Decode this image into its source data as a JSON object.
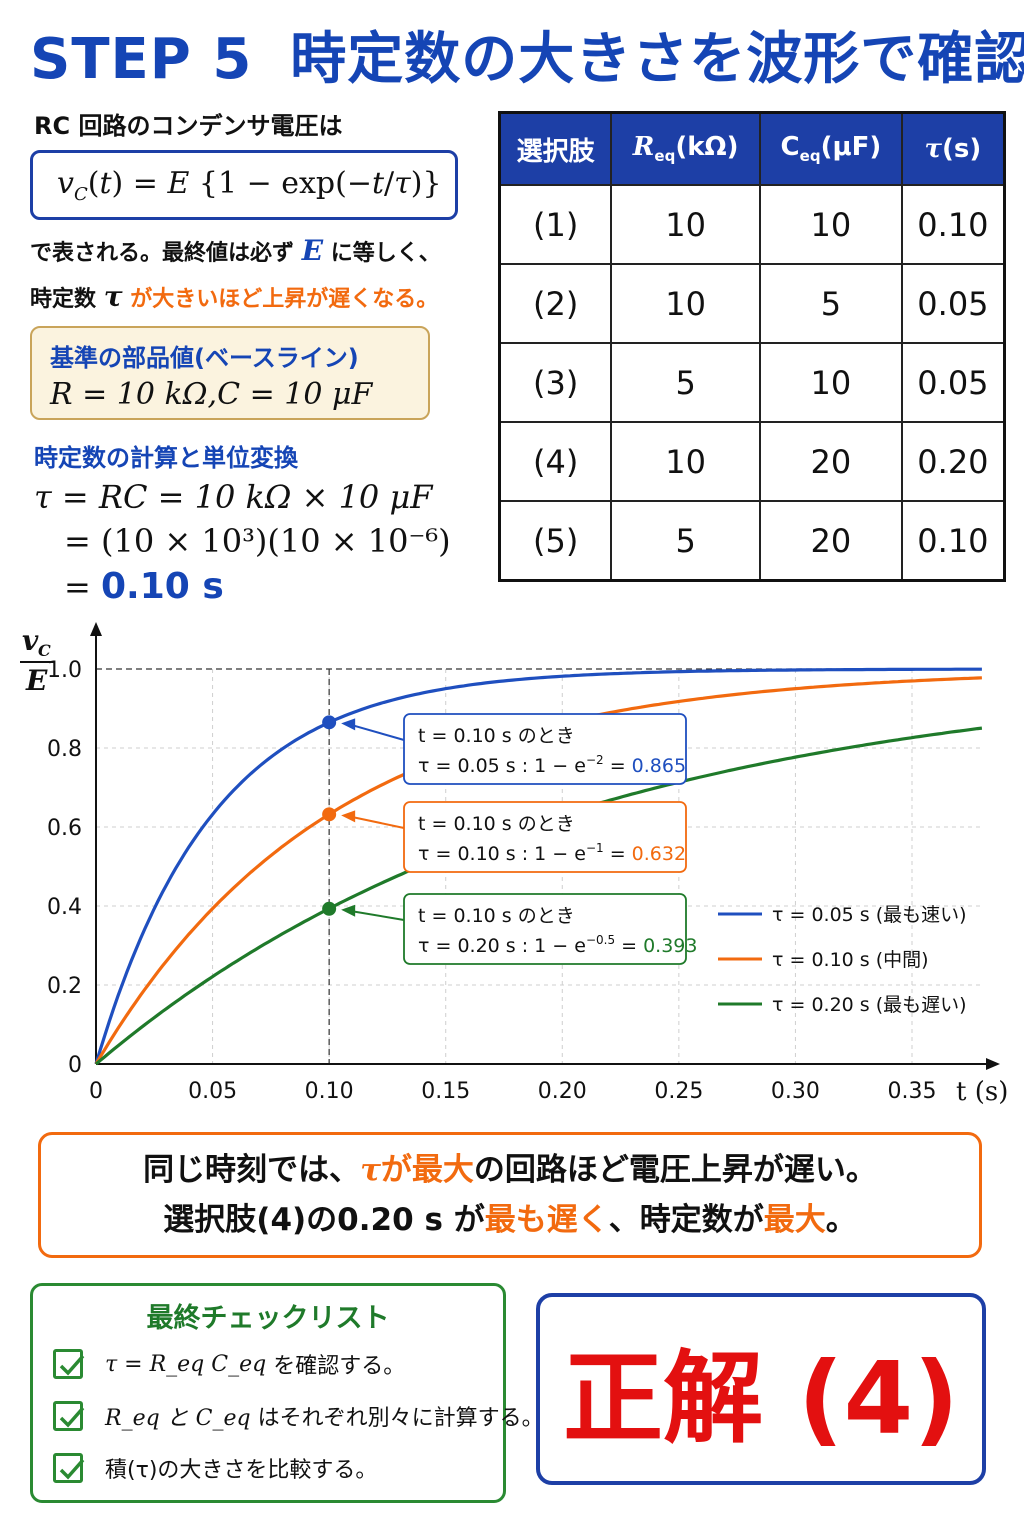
{
  "title": {
    "step": "STEP 5",
    "text": "時定数の大きさを波形で確認"
  },
  "intro": {
    "lead": "RC 回路のコンデンサ電圧は",
    "formula": "v_C(t) = E{1 − exp(−t/τ)}",
    "line1_a": "で表される。最終値は必ず",
    "line1_var": "E",
    "line1_b": "に等しく、",
    "line2_a": "時定数",
    "line2_var": "τ",
    "line2_b": "が大きいほど上昇が遅くなる。"
  },
  "baseline": {
    "title": "基準の部品値(ベースライン)",
    "values": "R = 10 kΩ,C = 10 μF"
  },
  "calculation": {
    "title": "時定数の計算と単位変換",
    "line1": "τ = RC = 10 kΩ × 10 μF",
    "line2": "= (10 × 10³)(10 × 10⁻⁶)",
    "line3_eq": "=",
    "result": "0.10 s"
  },
  "table": {
    "headers": [
      "選択肢",
      "R_eq(kΩ)",
      "C_eq(μF)",
      "τ(s)"
    ],
    "rows": [
      [
        "(1)",
        "10",
        "10",
        "0.10"
      ],
      [
        "(2)",
        "10",
        "5",
        "0.05"
      ],
      [
        "(3)",
        "5",
        "10",
        "0.05"
      ],
      [
        "(4)",
        "10",
        "20",
        "0.20"
      ],
      [
        "(5)",
        "5",
        "20",
        "0.10"
      ]
    ]
  },
  "chart_data": {
    "type": "line",
    "ylabel": "v_C / E",
    "xlabel": "t (s)",
    "xlim": [
      0,
      0.38
    ],
    "ylim": [
      0,
      1.0
    ],
    "x_ticks": [
      "0",
      "0.05",
      "0.10",
      "0.15",
      "0.20",
      "0.25",
      "0.30",
      "0.35"
    ],
    "y_ticks": [
      "0",
      "0.2",
      "0.4",
      "0.6",
      "0.8",
      "1.0"
    ],
    "grid": true,
    "legend_position": "bottom-right",
    "series": [
      {
        "name": "τ = 0.05 s (最も速い)",
        "tau": 0.05,
        "color": "#1f4fbf"
      },
      {
        "name": "τ = 0.10 s (中間)",
        "tau": 0.1,
        "color": "#f26a0f"
      },
      {
        "name": "τ = 0.20 s (最も遅い)",
        "tau": 0.2,
        "color": "#1f7a2a"
      }
    ],
    "marker_t": 0.1,
    "annotations": [
      {
        "line1": "t = 0.10 s のとき",
        "line2": "τ = 0.05 s : 1 − e",
        "exp": "−2",
        "eq": " = ",
        "value": "0.865",
        "y": 0.865,
        "color": "#1f4fbf"
      },
      {
        "line1": "t = 0.10 s のとき",
        "line2": "τ = 0.10 s : 1 − e",
        "exp": "−1",
        "eq": " = ",
        "value": "0.632",
        "y": 0.632,
        "color": "#f26a0f"
      },
      {
        "line1": "t = 0.10 s のとき",
        "line2": "τ = 0.20 s : 1 − e",
        "exp": "−0.5",
        "eq": " = ",
        "value": "0.393",
        "y": 0.393,
        "color": "#1f7a2a"
      }
    ]
  },
  "conclusion": {
    "l1_a": "同じ時刻では、",
    "l1_tau": "τ",
    "l1_b": "が最大",
    "l1_c": "の回路ほど電圧上昇が遅い。",
    "l2_a": "選択肢(4)の0.20 s が",
    "l2_b": "最も遅く",
    "l2_c": "、時定数が",
    "l2_d": "最大",
    "l2_e": "。"
  },
  "checklist": {
    "title": "最終チェックリスト",
    "items": [
      {
        "math": "τ = R_eq C_eq",
        "text": "を確認する。"
      },
      {
        "math": "R_eq と C_eq",
        "text": "はそれぞれ別々に計算する。"
      },
      {
        "math": "積(τ)",
        "text": "の大きさを比較する。"
      }
    ]
  },
  "answer": "正解 (4)"
}
